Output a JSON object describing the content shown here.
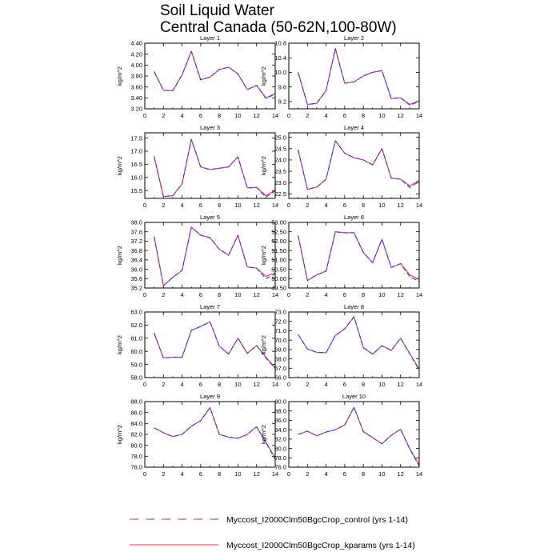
{
  "figure": {
    "title_line1": "Soil Liquid Water",
    "title_line2": "Central Canada (50-62N,100-80W)"
  },
  "legend": {
    "items": [
      {
        "label": "Myccost_I2000Clm50BgcCrop_control (yrs 1-14)",
        "color": "#3b3bd0",
        "dash": "dashed"
      },
      {
        "label": "Myccost_I2000Clm50BgcCrop_kparams (yrs 1-14)",
        "color": "#e8305a",
        "dash": "solid"
      }
    ]
  },
  "chart_data": [
    {
      "type": "line",
      "title": "Layer 1",
      "ylabel": "kg/m^2",
      "xlim": [
        0,
        14
      ],
      "ylim": [
        3.2,
        4.4
      ],
      "xticks": [
        0,
        2,
        4,
        6,
        8,
        10,
        12,
        14
      ],
      "yticks": [
        3.2,
        3.4,
        3.6,
        3.8,
        4.0,
        4.2,
        4.4
      ],
      "ytick_decimals": 2,
      "x": [
        1,
        2,
        3,
        4,
        5,
        6,
        7,
        8,
        9,
        10,
        11,
        12,
        13,
        14
      ],
      "series": [
        {
          "name": "Myccost_I2000Clm50BgcCrop_control (yrs 1-14)",
          "values": [
            3.88,
            3.54,
            3.53,
            3.82,
            4.25,
            3.73,
            3.78,
            3.92,
            3.96,
            3.84,
            3.55,
            3.63,
            3.39,
            3.47
          ]
        },
        {
          "name": "Myccost_I2000Clm50BgcCrop_kparams (yrs 1-14)",
          "values": [
            3.88,
            3.54,
            3.53,
            3.82,
            4.25,
            3.73,
            3.78,
            3.92,
            3.96,
            3.84,
            3.55,
            3.63,
            3.4,
            3.48
          ]
        }
      ]
    },
    {
      "type": "line",
      "title": "Layer 2",
      "ylabel": "kg/m^2",
      "xlim": [
        0,
        14
      ],
      "ylim": [
        9.0,
        10.8
      ],
      "xticks": [
        0,
        2,
        4,
        6,
        8,
        10,
        12,
        14
      ],
      "yticks": [
        9.2,
        9.6,
        10.0,
        10.4,
        10.8
      ],
      "ytick_decimals": 1,
      "x": [
        1,
        2,
        3,
        4,
        5,
        6,
        7,
        8,
        9,
        10,
        11,
        12,
        13,
        14
      ],
      "series": [
        {
          "name": "Myccost_I2000Clm50BgcCrop_control (yrs 1-14)",
          "values": [
            10.0,
            9.12,
            9.15,
            9.5,
            10.65,
            9.7,
            9.74,
            9.9,
            10.0,
            10.05,
            9.28,
            9.3,
            9.1,
            9.2
          ]
        },
        {
          "name": "Myccost_I2000Clm50BgcCrop_kparams (yrs 1-14)",
          "values": [
            10.0,
            9.12,
            9.15,
            9.5,
            10.65,
            9.7,
            9.74,
            9.9,
            10.0,
            10.05,
            9.28,
            9.3,
            9.12,
            9.22
          ]
        }
      ]
    },
    {
      "type": "line",
      "title": "Layer 3",
      "ylabel": "kg/m^2",
      "xlim": [
        0,
        14
      ],
      "ylim": [
        15.2,
        17.7
      ],
      "xticks": [
        0,
        2,
        4,
        6,
        8,
        10,
        12,
        14
      ],
      "yticks": [
        15.5,
        16.0,
        16.5,
        17.0,
        17.5
      ],
      "ytick_decimals": 1,
      "x": [
        1,
        2,
        3,
        4,
        5,
        6,
        7,
        8,
        9,
        10,
        11,
        12,
        13,
        14
      ],
      "series": [
        {
          "name": "Myccost_I2000Clm50BgcCrop_control (yrs 1-14)",
          "values": [
            16.8,
            15.27,
            15.3,
            15.75,
            17.45,
            16.4,
            16.3,
            16.35,
            16.4,
            16.78,
            15.6,
            15.62,
            15.25,
            15.48
          ]
        },
        {
          "name": "Myccost_I2000Clm50BgcCrop_kparams (yrs 1-14)",
          "values": [
            16.8,
            15.27,
            15.3,
            15.75,
            17.45,
            16.4,
            16.3,
            16.35,
            16.4,
            16.78,
            15.6,
            15.62,
            15.3,
            15.52
          ]
        }
      ]
    },
    {
      "type": "line",
      "title": "Layer 4",
      "ylabel": "kg/m^2",
      "xlim": [
        0,
        14
      ],
      "ylim": [
        22.3,
        25.2
      ],
      "xticks": [
        0,
        2,
        4,
        6,
        8,
        10,
        12,
        14
      ],
      "yticks": [
        22.5,
        23.0,
        23.5,
        24.0,
        24.5,
        25.0
      ],
      "ytick_decimals": 1,
      "x": [
        1,
        2,
        3,
        4,
        5,
        6,
        7,
        8,
        9,
        10,
        11,
        12,
        13,
        14
      ],
      "series": [
        {
          "name": "Myccost_I2000Clm50BgcCrop_control (yrs 1-14)",
          "values": [
            24.45,
            22.7,
            22.8,
            23.15,
            24.85,
            24.3,
            24.1,
            24.0,
            23.78,
            24.5,
            23.2,
            23.15,
            22.78,
            23.05
          ]
        },
        {
          "name": "Myccost_I2000Clm50BgcCrop_kparams (yrs 1-14)",
          "values": [
            24.45,
            22.7,
            22.8,
            23.15,
            24.85,
            24.3,
            24.1,
            24.0,
            23.78,
            24.5,
            23.2,
            23.15,
            22.85,
            23.1
          ]
        }
      ]
    },
    {
      "type": "line",
      "title": "Layer 5",
      "ylabel": "kg/m^2",
      "xlim": [
        0,
        14
      ],
      "ylim": [
        35.2,
        38.0
      ],
      "xticks": [
        0,
        2,
        4,
        6,
        8,
        10,
        12,
        14
      ],
      "yticks": [
        35.2,
        35.6,
        36.0,
        36.4,
        36.8,
        37.2,
        37.6,
        38.0
      ],
      "ytick_decimals": 1,
      "x": [
        1,
        2,
        3,
        4,
        5,
        6,
        7,
        8,
        9,
        10,
        11,
        12,
        13,
        14
      ],
      "series": [
        {
          "name": "Myccost_I2000Clm50BgcCrop_control (yrs 1-14)",
          "values": [
            37.4,
            35.3,
            35.65,
            35.95,
            37.8,
            37.45,
            37.35,
            36.85,
            36.6,
            37.45,
            36.1,
            36.05,
            35.6,
            35.8
          ]
        },
        {
          "name": "Myccost_I2000Clm50BgcCrop_kparams (yrs 1-14)",
          "values": [
            37.4,
            35.3,
            35.65,
            35.95,
            37.8,
            37.45,
            37.35,
            36.85,
            36.6,
            37.45,
            36.1,
            36.05,
            35.7,
            35.85
          ]
        }
      ]
    },
    {
      "type": "line",
      "title": "Layer 6",
      "ylabel": "kg/m^2",
      "xlim": [
        0,
        14
      ],
      "ylim": [
        49.5,
        53.0
      ],
      "xticks": [
        0,
        2,
        4,
        6,
        8,
        10,
        12,
        14
      ],
      "yticks": [
        49.5,
        50.0,
        50.5,
        51.0,
        51.5,
        52.0,
        52.5,
        53.0
      ],
      "ytick_decimals": 2,
      "x": [
        1,
        2,
        3,
        4,
        5,
        6,
        7,
        8,
        9,
        10,
        11,
        12,
        13,
        14
      ],
      "series": [
        {
          "name": "Myccost_I2000Clm50BgcCrop_control (yrs 1-14)",
          "values": [
            52.3,
            49.9,
            50.2,
            50.4,
            52.5,
            52.45,
            52.45,
            51.4,
            50.85,
            52.1,
            50.6,
            50.8,
            50.1,
            49.85
          ]
        },
        {
          "name": "Myccost_I2000Clm50BgcCrop_kparams (yrs 1-14)",
          "values": [
            52.3,
            49.9,
            50.2,
            50.4,
            52.5,
            52.45,
            52.45,
            51.4,
            50.85,
            52.1,
            50.6,
            50.8,
            50.2,
            49.95
          ]
        }
      ]
    },
    {
      "type": "line",
      "title": "Layer 7",
      "ylabel": "kg/m^2",
      "xlim": [
        0,
        14
      ],
      "ylim": [
        58.0,
        63.0
      ],
      "xticks": [
        0,
        2,
        4,
        6,
        8,
        10,
        12,
        14
      ],
      "yticks": [
        58.0,
        59.0,
        60.0,
        61.0,
        62.0,
        63.0
      ],
      "ytick_decimals": 1,
      "x": [
        1,
        2,
        3,
        4,
        5,
        6,
        7,
        8,
        9,
        10,
        11,
        12,
        13,
        14
      ],
      "series": [
        {
          "name": "Myccost_I2000Clm50BgcCrop_control (yrs 1-14)",
          "values": [
            61.4,
            59.5,
            59.55,
            59.55,
            61.6,
            61.9,
            62.25,
            60.4,
            59.8,
            61.0,
            59.85,
            60.45,
            59.5,
            58.7
          ]
        },
        {
          "name": "Myccost_I2000Clm50BgcCrop_kparams (yrs 1-14)",
          "values": [
            61.4,
            59.5,
            59.55,
            59.55,
            61.6,
            61.9,
            62.25,
            60.4,
            59.8,
            61.0,
            59.85,
            60.45,
            59.55,
            58.75
          ]
        }
      ]
    },
    {
      "type": "line",
      "title": "Layer 8",
      "ylabel": "kg/m^2",
      "xlim": [
        0,
        14
      ],
      "ylim": [
        66.0,
        73.0
      ],
      "xticks": [
        0,
        2,
        4,
        6,
        8,
        10,
        12,
        14
      ],
      "yticks": [
        66.0,
        67.0,
        68.0,
        69.0,
        70.0,
        71.0,
        72.0,
        73.0
      ],
      "ytick_decimals": 1,
      "x": [
        1,
        2,
        3,
        4,
        5,
        6,
        7,
        8,
        9,
        10,
        11,
        12,
        13,
        14
      ],
      "series": [
        {
          "name": "Myccost_I2000Clm50BgcCrop_control (yrs 1-14)",
          "values": [
            70.6,
            69.05,
            68.7,
            68.65,
            70.5,
            71.2,
            72.5,
            69.2,
            68.5,
            69.4,
            68.9,
            70.2,
            68.5,
            66.8
          ]
        },
        {
          "name": "Myccost_I2000Clm50BgcCrop_kparams (yrs 1-14)",
          "values": [
            70.6,
            69.05,
            68.7,
            68.65,
            70.5,
            71.2,
            72.5,
            69.2,
            68.5,
            69.4,
            68.9,
            70.2,
            68.55,
            66.9
          ]
        }
      ]
    },
    {
      "type": "line",
      "title": "Layer 9",
      "ylabel": "kg/m^2",
      "xlim": [
        0,
        14
      ],
      "ylim": [
        76.0,
        88.0
      ],
      "xticks": [
        0,
        2,
        4,
        6,
        8,
        10,
        12,
        14
      ],
      "yticks": [
        76.0,
        78.0,
        80.0,
        82.0,
        84.0,
        86.0,
        88.0
      ],
      "ytick_decimals": 1,
      "x": [
        1,
        2,
        3,
        4,
        5,
        6,
        7,
        8,
        9,
        10,
        11,
        12,
        13,
        14
      ],
      "series": [
        {
          "name": "Myccost_I2000Clm50BgcCrop_control (yrs 1-14)",
          "values": [
            83.2,
            82.3,
            81.6,
            82.0,
            83.5,
            84.5,
            86.9,
            82.0,
            81.5,
            81.3,
            82.0,
            83.4,
            80.5,
            77.5
          ]
        },
        {
          "name": "Myccost_I2000Clm50BgcCrop_kparams (yrs 1-14)",
          "values": [
            83.2,
            82.3,
            81.6,
            82.0,
            83.5,
            84.5,
            86.9,
            82.0,
            81.5,
            81.3,
            82.0,
            83.4,
            80.6,
            77.7
          ]
        }
      ]
    },
    {
      "type": "line",
      "title": "Layer 10",
      "ylabel": "kg/m^2",
      "xlim": [
        0,
        14
      ],
      "ylim": [
        76.0,
        90.0
      ],
      "xticks": [
        0,
        2,
        4,
        6,
        8,
        10,
        12,
        14
      ],
      "yticks": [
        76.0,
        78.0,
        80.0,
        82.0,
        84.0,
        86.0,
        88.0,
        90.0
      ],
      "ytick_decimals": 1,
      "x": [
        1,
        2,
        3,
        4,
        5,
        6,
        7,
        8,
        9,
        10,
        11,
        12,
        13,
        14
      ],
      "series": [
        {
          "name": "Myccost_I2000Clm50BgcCrop_control (yrs 1-14)",
          "values": [
            83.0,
            83.7,
            82.7,
            83.5,
            84.0,
            85.0,
            88.8,
            83.6,
            82.3,
            81.0,
            82.8,
            84.1,
            79.8,
            76.3
          ]
        },
        {
          "name": "Myccost_I2000Clm50BgcCrop_kparams (yrs 1-14)",
          "values": [
            83.0,
            83.7,
            82.7,
            83.5,
            84.0,
            85.0,
            88.8,
            83.6,
            82.3,
            81.0,
            82.8,
            84.1,
            79.9,
            76.5
          ]
        }
      ]
    }
  ]
}
